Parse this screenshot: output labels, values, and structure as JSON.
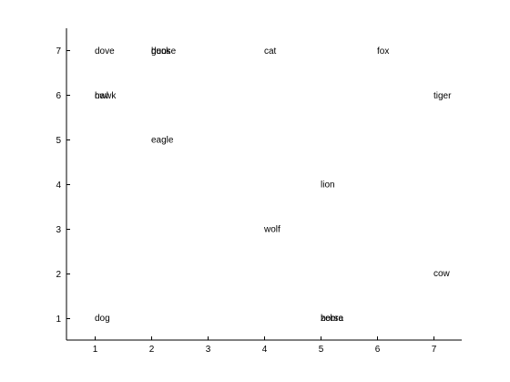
{
  "chart_data": {
    "type": "scatter",
    "title": "",
    "xlabel": "",
    "ylabel": "",
    "xlim": [
      0.5,
      7.5
    ],
    "ylim": [
      0.5,
      7.5
    ],
    "xticks": [
      1,
      2,
      3,
      4,
      5,
      6,
      7
    ],
    "yticks": [
      1,
      2,
      3,
      4,
      5,
      6,
      7
    ],
    "grid": false,
    "markers": "text labels only",
    "points": [
      {
        "label": "dove",
        "x": 1,
        "y": 7
      },
      {
        "label": "hen",
        "x": 2,
        "y": 7
      },
      {
        "label": "duck",
        "x": 2,
        "y": 7
      },
      {
        "label": "goose",
        "x": 2,
        "y": 7
      },
      {
        "label": "cat",
        "x": 4,
        "y": 7
      },
      {
        "label": "fox",
        "x": 6,
        "y": 7
      },
      {
        "label": "owl",
        "x": 1,
        "y": 6
      },
      {
        "label": "hawk",
        "x": 1,
        "y": 6
      },
      {
        "label": "tiger",
        "x": 7,
        "y": 6
      },
      {
        "label": "eagle",
        "x": 2,
        "y": 5
      },
      {
        "label": "lion",
        "x": 5,
        "y": 4
      },
      {
        "label": "wolf",
        "x": 4,
        "y": 3
      },
      {
        "label": "cow",
        "x": 7,
        "y": 2
      },
      {
        "label": "dog",
        "x": 1,
        "y": 1
      },
      {
        "label": "horse",
        "x": 5,
        "y": 1
      },
      {
        "label": "zebra",
        "x": 5,
        "y": 1
      }
    ]
  }
}
